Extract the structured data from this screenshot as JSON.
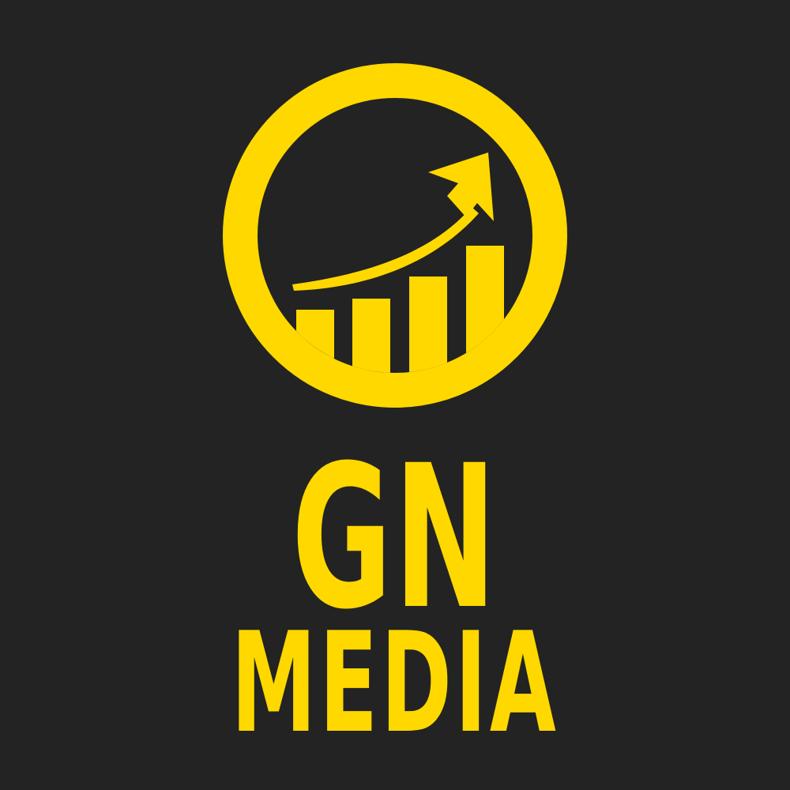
{
  "colors": {
    "background": "#232323",
    "accent": "#FFD800"
  },
  "logo": {
    "icon": "growth-chart-arrow-icon",
    "line1": "GN",
    "line2": "MEDIA"
  }
}
